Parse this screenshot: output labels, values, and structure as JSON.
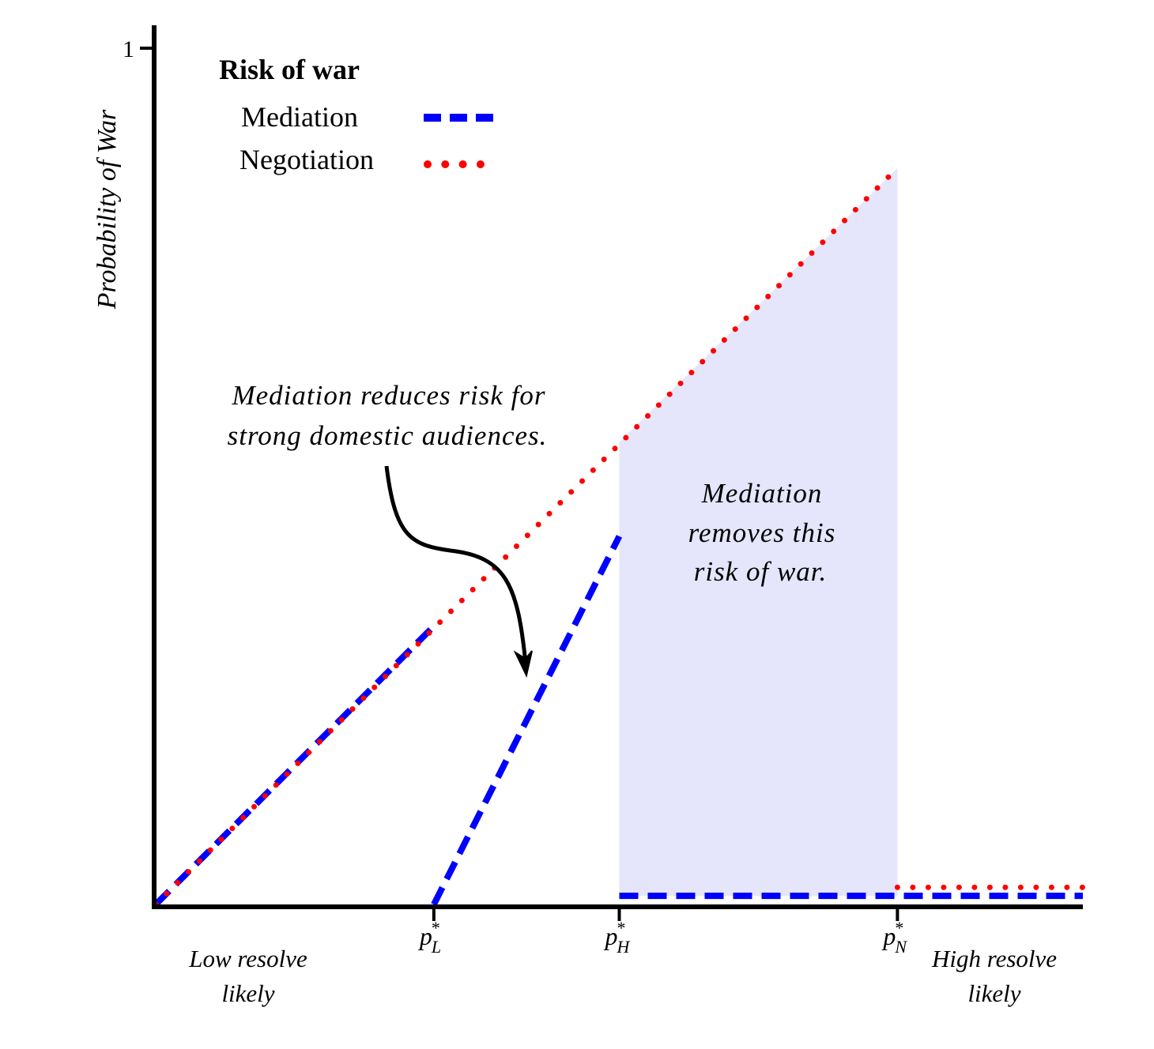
{
  "chart_data": {
    "type": "line",
    "ylabel": "Probability of War",
    "y_tick_label": "1",
    "ylim": [
      0,
      1
    ],
    "x_ticks": [
      {
        "x": 0.3,
        "base": "p",
        "sup": "*",
        "sub": "L"
      },
      {
        "x": 0.5,
        "base": "p",
        "sup": "*",
        "sub": "H"
      },
      {
        "x": 0.8,
        "base": "p",
        "sup": "*",
        "sub": "N"
      }
    ],
    "x_end_labels": {
      "left": [
        "Low resolve",
        "likely"
      ],
      "right": [
        "High resolve",
        "likely"
      ]
    },
    "legend": {
      "title": "Risk of war",
      "placement": "top-left",
      "entries": [
        {
          "name": "Mediation",
          "style": "dashed",
          "color": "#0000ff"
        },
        {
          "name": "Negotiation",
          "style": "dotted",
          "color": "#ff0000"
        }
      ]
    },
    "series": [
      {
        "name": "Mediation",
        "color": "#0000ff",
        "style": "dashed",
        "segments": [
          [
            [
              0.0,
              0.0
            ],
            [
              0.3,
              0.325
            ]
          ],
          [
            [
              0.3,
              0.0
            ],
            [
              0.5,
              0.43
            ]
          ],
          [
            [
              0.5,
              0.01
            ],
            [
              1.0,
              0.01
            ]
          ]
        ]
      },
      {
        "name": "Negotiation",
        "color": "#ff0000",
        "style": "dotted",
        "segments": [
          [
            [
              0.0,
              0.0
            ],
            [
              0.8,
              0.86
            ]
          ],
          [
            [
              0.8,
              0.02
            ],
            [
              1.0,
              0.02
            ]
          ]
        ]
      }
    ],
    "shaded_region": {
      "color": "#e5e5fb",
      "polygon": [
        [
          0.5,
          0.01
        ],
        [
          0.5,
          0.54
        ],
        [
          0.8,
          0.86
        ],
        [
          0.8,
          0.01
        ]
      ]
    },
    "annotations": [
      {
        "id": "reduces",
        "lines": [
          "Mediation reduces risk for",
          "strong domestic audiences."
        ]
      },
      {
        "id": "removes",
        "lines": [
          "Mediation",
          "removes this",
          "risk of war."
        ]
      }
    ]
  }
}
